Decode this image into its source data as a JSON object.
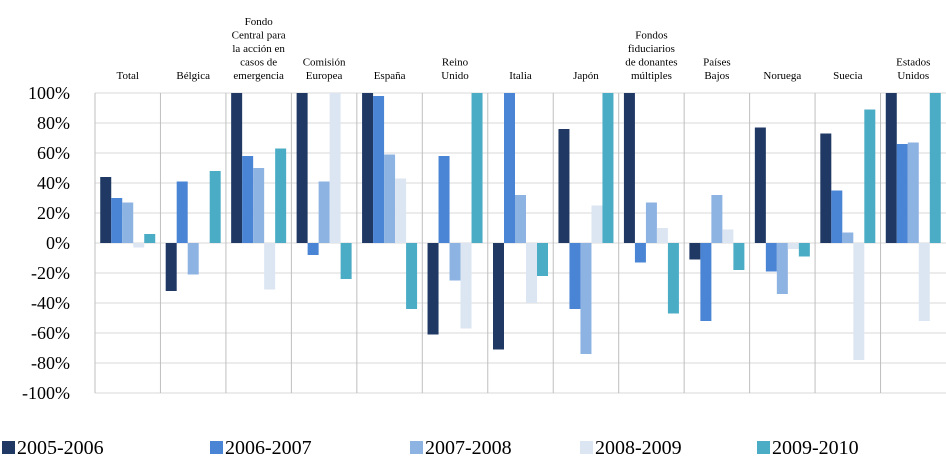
{
  "chart_data": {
    "type": "bar",
    "categories": [
      "Total",
      "Bélgica",
      "Fondo\nCentral para\nla acción en\ncasos de\nemergencia",
      "Comisión\nEuropea",
      "España",
      "Reino\nUnido",
      "Italia",
      "Japón",
      "Fondos\nfiduciarios\nde donantes\nmúltiples",
      "Países\nBajos",
      "Noruega",
      "Suecia",
      "Estados\nUnidos"
    ],
    "series": [
      {
        "name": "2005-2006",
        "color": "#1f3864",
        "values": [
          44,
          -32,
          100,
          100,
          100,
          -61,
          -71,
          76,
          100,
          -11,
          77,
          73,
          100
        ]
      },
      {
        "name": "2006-2007",
        "color": "#4a84d4",
        "values": [
          30,
          41,
          58,
          -8,
          98,
          58,
          100,
          -44,
          -13,
          -52,
          -19,
          35,
          66
        ]
      },
      {
        "name": "2007-2008",
        "color": "#8db3e2",
        "values": [
          27,
          -21,
          50,
          41,
          59,
          -25,
          32,
          -74,
          27,
          32,
          -34,
          7,
          67
        ]
      },
      {
        "name": "2008-2009",
        "color": "#dce6f2",
        "values": [
          -3,
          0,
          -31,
          100,
          43,
          -57,
          -40,
          25,
          10,
          9,
          -4,
          -78,
          -52
        ]
      },
      {
        "name": "2009-2010",
        "color": "#4bacc6",
        "values": [
          6,
          48,
          63,
          -24,
          -44,
          100,
          -22,
          100,
          -47,
          -18,
          -9,
          89,
          100
        ]
      }
    ],
    "ylim": [
      -100,
      100
    ],
    "yticks": [
      {
        "value": -100,
        "label": "-100%"
      },
      {
        "value": -80,
        "label": "-80%"
      },
      {
        "value": -60,
        "label": "-60%"
      },
      {
        "value": -40,
        "label": "-40%"
      },
      {
        "value": -20,
        "label": "-20%"
      },
      {
        "value": 0,
        "label": "0%"
      },
      {
        "value": 20,
        "label": "20%"
      },
      {
        "value": 40,
        "label": "40%"
      },
      {
        "value": 60,
        "label": "60%"
      },
      {
        "value": 80,
        "label": "80%"
      },
      {
        "value": 100,
        "label": "100%"
      }
    ],
    "grid": true
  }
}
